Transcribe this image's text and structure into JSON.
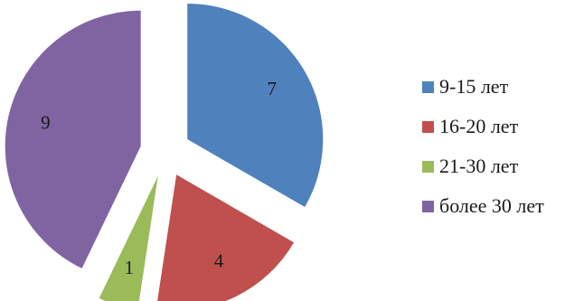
{
  "chart_data": {
    "type": "pie",
    "title": "",
    "categories": [
      "9-15 лет",
      "16-20 лет",
      "21-30 лет",
      "более 30 лет"
    ],
    "values": [
      7,
      4,
      1,
      9
    ],
    "colors": [
      "#4F81BD",
      "#C0504D",
      "#9BBB59",
      "#8064A2"
    ],
    "exploded": true,
    "data_labels_shown": true,
    "legend_position": "right"
  },
  "legend": {
    "items": [
      {
        "label": "9-15 лет",
        "color": "#4F81BD"
      },
      {
        "label": "16-20 лет",
        "color": "#C0504D"
      },
      {
        "label": "21-30 лет",
        "color": "#9BBB59"
      },
      {
        "label": "более 30 лет",
        "color": "#8064A2"
      }
    ]
  }
}
